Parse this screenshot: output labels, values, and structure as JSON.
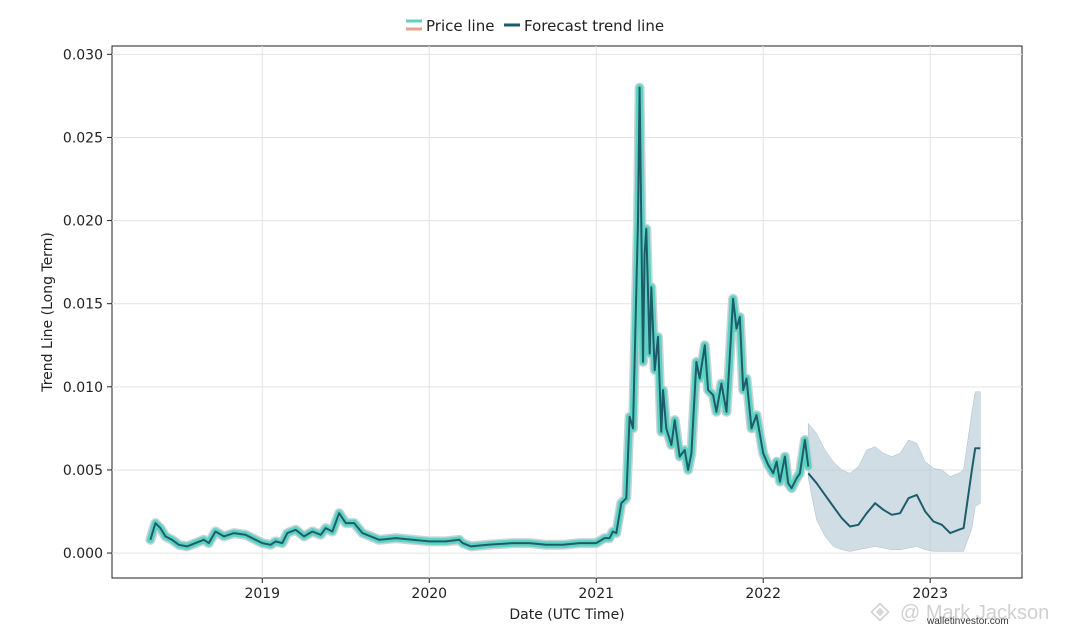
{
  "chart_data": {
    "type": "line",
    "xlabel": "Date (UTC Time)",
    "ylabel": "Trend Line (Long Term)",
    "xlim": [
      2018.1,
      2023.55
    ],
    "ylim": [
      -0.0015,
      0.0305
    ],
    "x_ticks": [
      2019,
      2020,
      2021,
      2022,
      2023
    ],
    "x_tick_labels": [
      "2019",
      "2020",
      "2021",
      "2022",
      "2023"
    ],
    "y_ticks": [
      0.0,
      0.005,
      0.01,
      0.015,
      0.02,
      0.025,
      0.03
    ],
    "y_tick_labels": [
      "0.000",
      "0.005",
      "0.010",
      "0.015",
      "0.020",
      "0.025",
      "0.030"
    ],
    "grid": true,
    "legend": {
      "placement": "top-center",
      "items": [
        {
          "label": "Price line",
          "colors": [
            "#5fd3c2",
            "#e8a08e"
          ]
        },
        {
          "label": "Forecast trend line",
          "colors": [
            "#1d5d6b"
          ]
        }
      ]
    },
    "series": [
      {
        "name": "Price line",
        "color": "#5fd3c2",
        "x": [
          2018.33,
          2018.36,
          2018.39,
          2018.42,
          2018.46,
          2018.5,
          2018.55,
          2018.6,
          2018.65,
          2018.68,
          2018.72,
          2018.77,
          2018.83,
          2018.9,
          2019.0,
          2019.05,
          2019.08,
          2019.12,
          2019.15,
          2019.2,
          2019.25,
          2019.3,
          2019.35,
          2019.38,
          2019.42,
          2019.46,
          2019.5,
          2019.55,
          2019.6,
          2019.7,
          2019.8,
          2019.9,
          2020.0,
          2020.1,
          2020.18,
          2020.2,
          2020.25,
          2020.35,
          2020.5,
          2020.6,
          2020.7,
          2020.8,
          2020.9,
          2021.0,
          2021.05,
          2021.08,
          2021.1,
          2021.12,
          2021.15,
          2021.18,
          2021.2,
          2021.22,
          2021.25,
          2021.26,
          2021.28,
          2021.29,
          2021.3,
          2021.32,
          2021.33,
          2021.35,
          2021.37,
          2021.39,
          2021.4,
          2021.42,
          2021.45,
          2021.47,
          2021.5,
          2021.53,
          2021.55,
          2021.57,
          2021.6,
          2021.62,
          2021.65,
          2021.67,
          2021.7,
          2021.72,
          2021.75,
          2021.78,
          2021.8,
          2021.82,
          2021.84,
          2021.86,
          2021.88,
          2021.9,
          2021.93,
          2021.96,
          2022.0,
          2022.03,
          2022.06,
          2022.08,
          2022.1,
          2022.13,
          2022.15,
          2022.17,
          2022.2,
          2022.22,
          2022.25,
          2022.27
        ],
        "values": [
          0.0008,
          0.0018,
          0.0015,
          0.001,
          0.0008,
          0.0005,
          0.0004,
          0.0006,
          0.0008,
          0.0006,
          0.0013,
          0.001,
          0.0012,
          0.0011,
          0.0006,
          0.0005,
          0.0007,
          0.0006,
          0.0012,
          0.0014,
          0.001,
          0.0013,
          0.0011,
          0.0015,
          0.0013,
          0.0024,
          0.0018,
          0.0018,
          0.0012,
          0.0008,
          0.0009,
          0.0008,
          0.0007,
          0.0007,
          0.0008,
          0.0006,
          0.0004,
          0.0005,
          0.0006,
          0.0006,
          0.0005,
          0.0005,
          0.0006,
          0.0006,
          0.0009,
          0.0009,
          0.0013,
          0.0012,
          0.003,
          0.0033,
          0.0082,
          0.0075,
          0.02,
          0.028,
          0.0115,
          0.018,
          0.0195,
          0.012,
          0.016,
          0.011,
          0.013,
          0.0073,
          0.0098,
          0.0075,
          0.0065,
          0.008,
          0.0058,
          0.0062,
          0.005,
          0.006,
          0.0115,
          0.0105,
          0.0125,
          0.0098,
          0.0095,
          0.0085,
          0.0102,
          0.0085,
          0.0118,
          0.0153,
          0.0135,
          0.0142,
          0.0098,
          0.0105,
          0.0075,
          0.0083,
          0.006,
          0.0053,
          0.0048,
          0.0055,
          0.0043,
          0.0058,
          0.0042,
          0.0039,
          0.0045,
          0.0048,
          0.0068,
          0.0052
        ]
      },
      {
        "name": "Forecast trend line",
        "color": "#1d5d6b",
        "x": [
          2022.27,
          2022.32,
          2022.37,
          2022.42,
          2022.47,
          2022.52,
          2022.57,
          2022.62,
          2022.67,
          2022.72,
          2022.77,
          2022.82,
          2022.87,
          2022.92,
          2022.97,
          2023.02,
          2023.07,
          2023.12,
          2023.17,
          2023.2,
          2023.25,
          2023.27,
          2023.3
        ],
        "values": [
          0.0048,
          0.0042,
          0.0035,
          0.0028,
          0.0021,
          0.0016,
          0.0017,
          0.0024,
          0.003,
          0.0026,
          0.0023,
          0.0024,
          0.0033,
          0.0035,
          0.0025,
          0.0019,
          0.0017,
          0.0012,
          0.0014,
          0.0015,
          0.005,
          0.0063,
          0.0063
        ],
        "band_upper": [
          0.0078,
          0.0072,
          0.0062,
          0.0055,
          0.005,
          0.0048,
          0.0052,
          0.0062,
          0.0064,
          0.006,
          0.0058,
          0.006,
          0.0068,
          0.0066,
          0.0055,
          0.0051,
          0.005,
          0.0046,
          0.0048,
          0.005,
          0.0085,
          0.0097,
          0.0097
        ],
        "band_lower": [
          0.0045,
          0.002,
          0.001,
          0.0004,
          0.0002,
          0.0001,
          0.0002,
          0.0003,
          0.0004,
          0.0003,
          0.0002,
          0.0002,
          0.0003,
          0.0004,
          0.0002,
          0.0001,
          0.0001,
          0.0001,
          0.0001,
          0.0001,
          0.0015,
          0.0028,
          0.003
        ]
      }
    ]
  },
  "watermark": {
    "author": "@ Mark Jackson",
    "site": "walletinvestor.com"
  }
}
